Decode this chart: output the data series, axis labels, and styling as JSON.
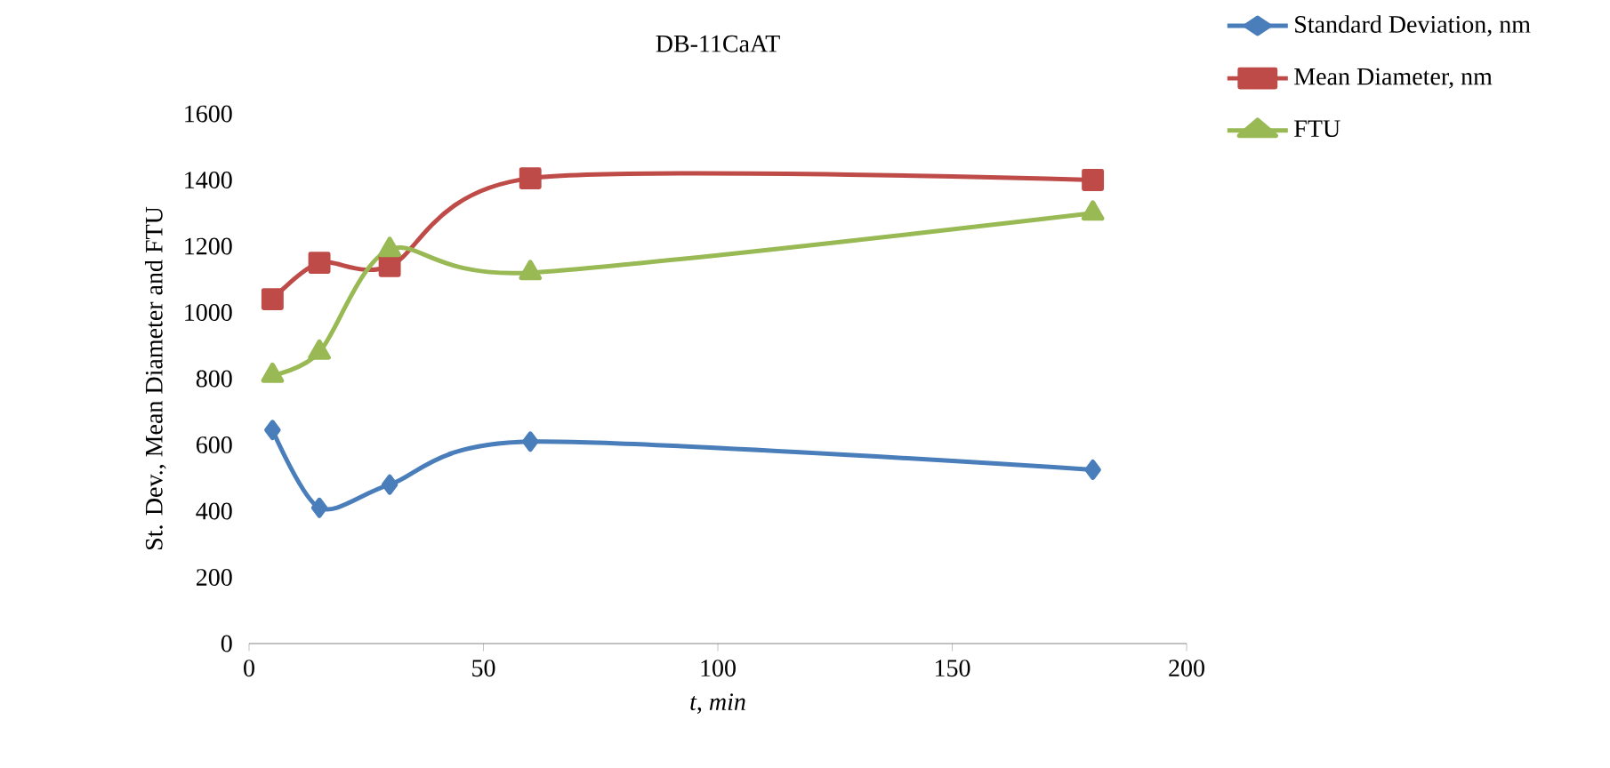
{
  "chart_data": {
    "type": "line",
    "title": "DB-11CaAT",
    "xlabel": "*t*, *min*",
    "ylabel": "St. Dev., Mean Diameter and FTU",
    "x": [
      5,
      15,
      30,
      60,
      180
    ],
    "series": [
      {
        "name": "Standard Deviation, nm",
        "color": "#4a7ebb",
        "marker": "diamond",
        "values": [
          645,
          410,
          480,
          610,
          525
        ]
      },
      {
        "name": "Mean Diameter, nm",
        "color": "#be4b48",
        "marker": "square",
        "values": [
          1040,
          1150,
          1140,
          1405,
          1400
        ]
      },
      {
        "name": "FTU",
        "color": "#98b954",
        "marker": "triangle",
        "values": [
          810,
          880,
          1190,
          1120,
          1300
        ]
      }
    ],
    "xlim": [
      0,
      200
    ],
    "xticks": [
      0,
      50,
      100,
      150,
      200
    ],
    "ylim": [
      0,
      1600
    ],
    "yticks": [
      0,
      200,
      400,
      600,
      800,
      1000,
      1200,
      1400,
      1600
    ],
    "grid": false,
    "legend": "right"
  }
}
